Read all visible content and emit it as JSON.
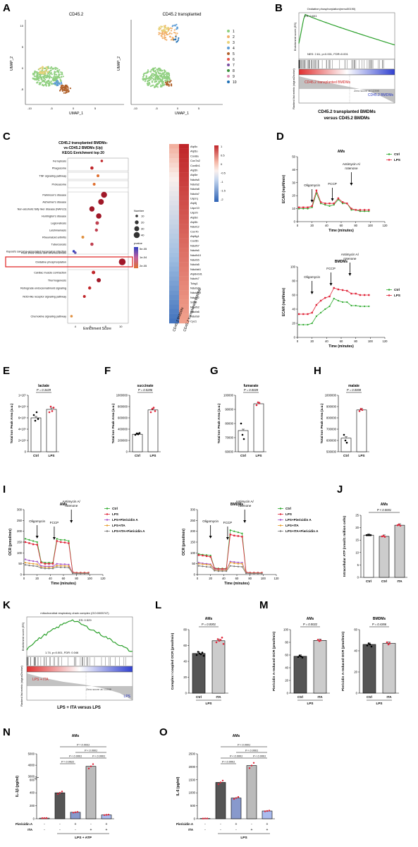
{
  "figure": {
    "panel_letters": [
      "A",
      "B",
      "C",
      "D",
      "E",
      "F",
      "G",
      "H",
      "I",
      "J",
      "K",
      "L",
      "M",
      "N",
      "O"
    ]
  },
  "panelA": {
    "left_title": "CD45.2",
    "right_title": "CD45.2 transplanted",
    "xlabel": "UMAP_1",
    "ylabel": "UMAP_2",
    "xticks": [
      "-10",
      "-5",
      "0",
      "5"
    ],
    "yticks": [
      "10",
      "5",
      "0",
      "-5"
    ],
    "legend": [
      "1",
      "2",
      "3",
      "4",
      "5",
      "6",
      "7",
      "8",
      "9",
      "10"
    ],
    "colors": [
      "#8fcf7f",
      "#f2b06a",
      "#e8d27a",
      "#5b9bd5",
      "#b0602a",
      "#e6554a",
      "#7a4fa0",
      "#3a8f3a",
      "#d98bb5",
      "#1f6fb5"
    ]
  },
  "panelB": {
    "title": "Oxidative phosphorylation(mmu00190)",
    "es_label": "ES: 0.641",
    "stats": "NES: 2.61, p<0.001, FDR<0.001",
    "ylabel_top": "Enrichment score (ES)",
    "ylabel_bottom": "Ranked list metric (signal2noise)",
    "pos_label": "CD45.2 transplanted BMDMs",
    "neg_label": "CD45.2 BMDMs",
    "zero_cross": "Zero score at 12399",
    "caption1": "CD45.2 transplanted BMDMs",
    "caption2": "versus CD45.2 BMDMs"
  },
  "panelC": {
    "title1": "CD45.2 transplanted BMDMs-",
    "title2": "vs-CD45.2 BMDMs (Up)",
    "title3": "KEGG Enrichment top 20",
    "terms": [
      "Ferroptosis",
      "Phagosome",
      "TNF signaling pathway",
      "Proteasome",
      "Parkinson's disease",
      "Alzheimer's disease",
      "Non-alcoholic fatty liver disease (NAFLD)",
      "Huntington's disease",
      "Legionellosis",
      "Leishmaniasis",
      "Rheumatoid arthritis",
      "Tuberculosis",
      "Kaposi's sarcoma-associated herpesvirus infection",
      "Fluid shear stress and atherosclerosis",
      "Oxidative phosphorylation",
      "Cardiac muscle contraction",
      "Thermogenesis",
      "Retrograde endocannabinoid signaling",
      "NOD-like receptor signaling pathway",
      "Chemokine signaling pathway"
    ],
    "xlabel": "Enrichment Score",
    "xticks": [
      "4",
      "6",
      "8",
      "10"
    ],
    "number_label": "Number",
    "number_values": [
      "10",
      "20",
      "30",
      "40"
    ],
    "pvalue_label": "pvalue",
    "pvalue_values": [
      "5e-05",
      "1e-04",
      "2e-05"
    ],
    "genes": [
      "Atp5c",
      "Atp5o",
      "Cox8a",
      "Cox7a2",
      "Cox6b1",
      "Atp5h",
      "Atp5e",
      "Ndufs8",
      "Ndufa2",
      "Ndufa8",
      "Ndufa7",
      "Uqcrq",
      "Atp5j",
      "Uqcr10",
      "Uqcrb",
      "Atp5d",
      "Atp5b",
      "Ndufc2",
      "Cox7b",
      "Atp5g1",
      "Cox5b",
      "Ndufb7",
      "Ndufs6",
      "Ndufb10",
      "Ndufs5",
      "Ndufa5",
      "Ndufab1",
      "Atp6v0d1",
      "Ndufs7",
      "Tcirg1",
      "Ndufa11",
      "Ndufa10",
      "Ndufv2",
      "Sdhb",
      "Ndufb2",
      "Ndufa6",
      "Ndufa9",
      "Cyc1"
    ],
    "heat_cols": [
      "CD45.2 BMDMs",
      "CD45.2 transplanted BMDMs"
    ],
    "heat_scale": [
      "1",
      "0.5",
      "0",
      "-0.5",
      "-1",
      "-1.5",
      "-2"
    ]
  },
  "panelD": {
    "ams_title": "AMs",
    "bmdms_title": "BMDMs",
    "ylabel": "ECAR (mpH/min)",
    "xlabel": "Time (minutes)",
    "legend": [
      "Ctrl",
      "LPS"
    ],
    "inj": [
      "Oligomycin",
      "FCCP",
      "Antimycin A/ rotenone"
    ],
    "xticks": [
      "0",
      "20",
      "40",
      "60",
      "80",
      "100",
      "120"
    ],
    "ams_yticks": [
      "0",
      "10",
      "20",
      "30",
      "40",
      "50"
    ],
    "bmdms_yticks": [
      "0",
      "20",
      "40",
      "60",
      "80",
      "100"
    ],
    "time": [
      2,
      8,
      14,
      20,
      26,
      32,
      38,
      44,
      50,
      56,
      62,
      68,
      74,
      80,
      86,
      92,
      98
    ],
    "ams_ctrl": [
      10,
      10,
      10,
      11,
      22,
      14,
      13,
      12,
      13,
      17,
      14,
      14,
      9,
      9,
      8,
      8,
      8
    ],
    "ams_lps": [
      11,
      11,
      11,
      12,
      24,
      15,
      14,
      14,
      14,
      18,
      15,
      14,
      10,
      9,
      9,
      9,
      9
    ],
    "bmdms_ctrl": [
      18,
      18,
      18,
      20,
      30,
      35,
      40,
      44,
      55,
      52,
      50,
      50,
      45,
      45,
      44,
      44,
      44
    ],
    "bmdms_lps": [
      33,
      33,
      33,
      35,
      46,
      52,
      56,
      58,
      70,
      68,
      67,
      66,
      62,
      62,
      60,
      60,
      60
    ]
  },
  "panelEFGH": [
    {
      "title": "lactate",
      "ylabel": "Total Ion Peak Area (a.u.)",
      "p": "P = 0.3429",
      "yticks": [
        "0",
        "2×10⁶",
        "4×10⁶",
        "6×10⁶",
        "8×10⁶",
        "1×10⁷"
      ],
      "ymax": 10000000,
      "ymin": 0,
      "ctrl": 6000000,
      "lps": 7500000,
      "ctrl_pts": [
        6500000,
        5500000,
        7000000,
        5800000
      ],
      "lps_pts": [
        7000000,
        8000000,
        7200000,
        7800000
      ]
    },
    {
      "title": "succinate",
      "ylabel": "Total Ion Peak Area (a.u.)",
      "p": "P = 0.0286",
      "yticks": [
        "0",
        "200000",
        "400000",
        "600000",
        "800000",
        "1000000"
      ],
      "ymax": 1000000,
      "ymin": 0,
      "ctrl": 310000,
      "lps": 740000,
      "ctrl_pts": [
        300000,
        320000,
        310000,
        330000
      ],
      "lps_pts": [
        700000,
        760000,
        780000,
        720000
      ]
    },
    {
      "title": "fumarate",
      "ylabel": "Total Ion Peak Area (a.u.)",
      "p": "P = 0.0028",
      "yticks": [
        "60000",
        "70000",
        "80000",
        "90000",
        "100000"
      ],
      "ymax": 100000,
      "ymin": 60000,
      "ctrl": 75000,
      "lps": 94000,
      "ctrl_pts": [
        80000,
        72000,
        69000
      ],
      "lps_pts": [
        93000,
        95000,
        94500
      ]
    },
    {
      "title": "malate",
      "ylabel": "Total Ion Peak Area (a.u.)",
      "p": "P = 0.0008",
      "yticks": [
        "500000",
        "600000",
        "700000",
        "800000",
        "900000",
        "1000000"
      ],
      "ymax": 1000000,
      "ymin": 500000,
      "ctrl": 620000,
      "lps": 870000,
      "ctrl_pts": [
        650000,
        600000,
        580000
      ],
      "lps_pts": [
        860000,
        880000,
        870000
      ]
    }
  ],
  "panelI": {
    "ams_title": "AMs",
    "bmdms_title": "BMDMs",
    "ylabel": "OCR (pmol/min)",
    "xlabel": "Time (minutes)",
    "legend": [
      "Ctrl",
      "LPS",
      "LPS+Piericidin A",
      "LPS+ITA",
      "LPS+ITA+Piericidin A"
    ],
    "inj": [
      "Oligomycin",
      "FCCP",
      "Antimycin A/ rotenone"
    ],
    "xticks": [
      "0",
      "20",
      "40",
      "60",
      "80",
      "100",
      "120"
    ],
    "yticks": [
      "0",
      "50",
      "100",
      "150",
      "200",
      "250",
      "300"
    ],
    "time": [
      2,
      8,
      14,
      20,
      26,
      32,
      38,
      44,
      50,
      56,
      62,
      68,
      74,
      80,
      86,
      92,
      98
    ],
    "ams": {
      "ctrl": [
        165,
        160,
        155,
        150,
        60,
        55,
        55,
        55,
        165,
        160,
        160,
        155,
        10,
        8,
        8,
        8,
        8
      ],
      "lps": [
        150,
        145,
        140,
        138,
        55,
        50,
        50,
        50,
        155,
        150,
        148,
        145,
        10,
        8,
        8,
        8,
        8
      ],
      "pier": [
        70,
        65,
        62,
        60,
        40,
        38,
        38,
        38,
        50,
        48,
        48,
        46,
        8,
        6,
        6,
        6,
        6
      ],
      "ita": [
        55,
        52,
        50,
        48,
        35,
        33,
        33,
        33,
        42,
        40,
        40,
        39,
        7,
        6,
        6,
        6,
        6
      ],
      "itapier": [
        45,
        42,
        40,
        38,
        30,
        28,
        28,
        28,
        35,
        33,
        33,
        32,
        6,
        5,
        5,
        5,
        5
      ]
    },
    "bmdms": {
      "ctrl": [
        95,
        92,
        90,
        88,
        30,
        28,
        28,
        28,
        205,
        200,
        195,
        190,
        10,
        8,
        8,
        8,
        8
      ],
      "lps": [
        90,
        88,
        85,
        82,
        28,
        26,
        26,
        26,
        185,
        180,
        178,
        175,
        10,
        8,
        8,
        8,
        8
      ],
      "pier": [
        55,
        52,
        50,
        48,
        25,
        22,
        22,
        22,
        60,
        58,
        56,
        55,
        8,
        6,
        6,
        6,
        6
      ],
      "ita": [
        50,
        48,
        46,
        45,
        22,
        20,
        20,
        20,
        55,
        52,
        50,
        50,
        7,
        6,
        6,
        6,
        6
      ],
      "itapier": [
        40,
        38,
        36,
        35,
        18,
        16,
        16,
        16,
        40,
        38,
        37,
        36,
        6,
        5,
        5,
        5,
        5
      ]
    },
    "colors": [
      "#2eaa2e",
      "#e0263a",
      "#a24fc8",
      "#e8a030",
      "#777777"
    ]
  },
  "panelJ": {
    "title": "AMs",
    "ylabel": "Intracellular ATP (nmol/1 million cells)",
    "p": "P < 0.0001",
    "yticks": [
      "0",
      "5",
      "10",
      "15",
      "20",
      "25"
    ],
    "ymax": 25,
    "cats": [
      "Ctrl",
      "Ctrl",
      "ITA"
    ],
    "group": "LPS",
    "values": [
      17,
      16.5,
      21
    ]
  },
  "panelK": {
    "title": "mitochondrial respiratory chain complex (GO:0005747)",
    "es_label": "ES: 0.529",
    "stats": "1.74, p=0.001, FDR: 0.046",
    "ylabel_top": "Enrichment score (ES)",
    "ylabel_bottom": "Ranked list metric (signal2noise)",
    "pos_label": "LPS + ITA",
    "neg_label": "LPS",
    "zero_cross": "Zero score at 13398",
    "caption": "LPS + ITA versus LPS"
  },
  "panelL": {
    "title": "AMs",
    "ylabel": "Complex I coupled OCR (pmol/min)",
    "p": "P = 0.0001",
    "yticks": [
      "0",
      "20",
      "40",
      "60",
      "80"
    ],
    "ymax": 80,
    "cats": [
      "Ctrl",
      "ITA"
    ],
    "group": "LPS",
    "values": [
      50,
      66
    ]
  },
  "panelM": [
    {
      "title": "AMs",
      "ylabel": "Piericidin A-reduced OCR (pmol/min)",
      "p": "P = 0.0022",
      "yticks": [
        "0",
        "20",
        "40",
        "60",
        "80",
        "100"
      ],
      "ymax": 100,
      "cats": [
        "Ctrl",
        "ITA"
      ],
      "group": "LPS",
      "values": [
        58,
        83
      ]
    },
    {
      "title": "BMDMs",
      "ylabel": "Piericidin A-reduced OCR (pmol/min)",
      "p": "P = 0.4366",
      "yticks": [
        "0",
        "20",
        "40",
        "60"
      ],
      "ymax": 60,
      "cats": [
        "Ctrl",
        "ITA"
      ],
      "group": "LPS",
      "values": [
        46,
        47
      ]
    }
  ],
  "panelN": {
    "title": "AMs",
    "ylabel": "IL-1β (pg/ml)",
    "yticks": [
      "0",
      "200",
      "400",
      "600",
      "3000",
      "4000",
      "5000"
    ],
    "pvals": [
      "P = 0.0022",
      "P < 0.0001",
      "P < 0.0001",
      "P = 0.0031",
      "P < 0.0001"
    ],
    "row1": "Piericidin A",
    "row2": "ITA",
    "row1_vals": [
      "-",
      "-",
      "+",
      "-",
      "+"
    ],
    "row2_vals": [
      "-",
      "-",
      "-",
      "+",
      "+"
    ],
    "group": "LPS + ATP",
    "values": [
      10,
      400,
      100,
      3900,
      60
    ]
  },
  "panelO": {
    "title": "AMs",
    "ylabel": "IL-6 (pg/ml)",
    "yticks": [
      "0",
      "500",
      "1000",
      "1500",
      "2000",
      "2500"
    ],
    "pvals": [
      "P < 0.0001",
      "P < 0.0001",
      "P < 0.0001",
      "P < 0.0001",
      "P < 0.0001"
    ],
    "row1": "Piericidin A",
    "row2": "ITA",
    "row1_vals": [
      "-",
      "-",
      "+",
      "-",
      "+"
    ],
    "row2_vals": [
      "-",
      "-",
      "-",
      "+",
      "+"
    ],
    "group": "LPS",
    "values": [
      10,
      1400,
      800,
      2050,
      300
    ]
  }
}
